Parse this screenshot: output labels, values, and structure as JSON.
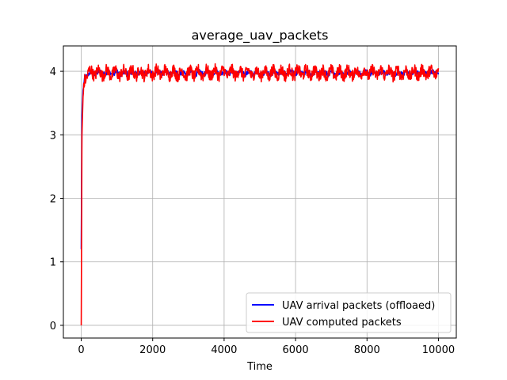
{
  "chart_data": {
    "type": "line",
    "title": "average_uav_packets",
    "xlabel": "Time",
    "ylabel": "",
    "xlim": [
      -500,
      10500
    ],
    "ylim": [
      -0.2,
      4.4
    ],
    "xticks": [
      0,
      2000,
      4000,
      6000,
      8000,
      10000
    ],
    "xtick_labels": [
      "0",
      "2000",
      "4000",
      "6000",
      "8000",
      "10000"
    ],
    "yticks": [
      0,
      1,
      2,
      3,
      4
    ],
    "ytick_labels": [
      "0",
      "1",
      "2",
      "3",
      "4"
    ],
    "grid": true,
    "legend_position": "lower-right",
    "series": [
      {
        "name": "UAV arrival packets (offloaed)",
        "color": "#0000ff",
        "x": [
          0,
          20,
          50,
          100,
          200,
          500,
          1000,
          2000,
          3000,
          4000,
          5000,
          6000,
          7000,
          8000,
          9000,
          10000
        ],
        "values": [
          1.2,
          3.3,
          3.7,
          3.9,
          3.97,
          3.98,
          3.97,
          3.98,
          3.97,
          3.98,
          3.97,
          3.98,
          3.97,
          3.98,
          3.97,
          3.98
        ]
      },
      {
        "name": "UAV computed packets",
        "color": "#ff0000",
        "x": [
          0,
          20,
          50,
          100,
          200,
          500,
          1000,
          2000,
          3000,
          4000,
          5000,
          6000,
          7000,
          8000,
          9000,
          10000
        ],
        "values": [
          0.0,
          3.0,
          3.6,
          3.9,
          3.98,
          3.98,
          3.97,
          3.98,
          3.97,
          3.98,
          3.97,
          3.98,
          3.97,
          3.98,
          3.97,
          3.98
        ],
        "fluctuation_range": [
          3.65,
          4.2
        ]
      }
    ]
  }
}
